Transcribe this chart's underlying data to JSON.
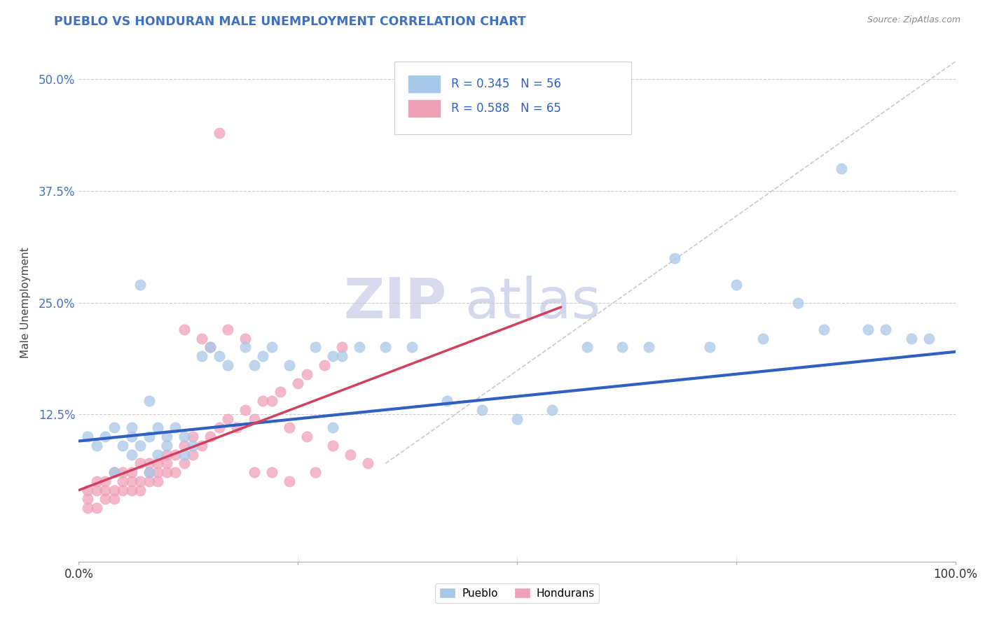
{
  "title": "PUEBLO VS HONDURAN MALE UNEMPLOYMENT CORRELATION CHART",
  "source": "Source: ZipAtlas.com",
  "ylabel": "Male Unemployment",
  "xlim": [
    0.0,
    1.0
  ],
  "ylim": [
    -0.04,
    0.54
  ],
  "xticks": [
    0.0,
    0.25,
    0.5,
    0.75,
    1.0
  ],
  "xtick_labels": [
    "0.0%",
    "",
    "",
    "",
    "100.0%"
  ],
  "yticks": [
    0.125,
    0.25,
    0.375,
    0.5
  ],
  "ytick_labels": [
    "12.5%",
    "25.0%",
    "37.5%",
    "50.0%"
  ],
  "pueblo_R": 0.345,
  "pueblo_N": 56,
  "honduran_R": 0.588,
  "honduran_N": 65,
  "pueblo_color": "#a8c8e8",
  "honduran_color": "#f0a0b8",
  "pueblo_line_color": "#3060c0",
  "honduran_line_color": "#d04060",
  "trend_line_color": "#c8c8d0",
  "legend_text_color": "#3060c0",
  "title_color": "#4070c0",
  "watermark_zip_color": "#d8d8ec",
  "watermark_atlas_color": "#c8c8e0",
  "pueblo_line_x0": 0.0,
  "pueblo_line_x1": 1.0,
  "pueblo_line_y0": 0.095,
  "pueblo_line_y1": 0.195,
  "honduran_line_x0": 0.0,
  "honduran_line_x1": 0.55,
  "honduran_line_y0": 0.04,
  "honduran_line_y1": 0.245,
  "gray_line_x0": 0.35,
  "gray_line_x1": 1.0,
  "gray_line_y0": 0.07,
  "gray_line_y1": 0.52,
  "pueblo_scatter_x": [
    0.01,
    0.02,
    0.03,
    0.04,
    0.05,
    0.06,
    0.06,
    0.07,
    0.08,
    0.09,
    0.1,
    0.1,
    0.11,
    0.12,
    0.13,
    0.07,
    0.08,
    0.14,
    0.15,
    0.16,
    0.17,
    0.19,
    0.2,
    0.21,
    0.22,
    0.24,
    0.27,
    0.29,
    0.3,
    0.32,
    0.35,
    0.38,
    0.42,
    0.46,
    0.5,
    0.54,
    0.58,
    0.62,
    0.65,
    0.68,
    0.72,
    0.75,
    0.78,
    0.82,
    0.85,
    0.87,
    0.9,
    0.92,
    0.95,
    0.97,
    0.29,
    0.06,
    0.09,
    0.12,
    0.04,
    0.08
  ],
  "pueblo_scatter_y": [
    0.1,
    0.09,
    0.1,
    0.11,
    0.09,
    0.1,
    0.08,
    0.09,
    0.1,
    0.11,
    0.09,
    0.1,
    0.11,
    0.1,
    0.09,
    0.27,
    0.14,
    0.19,
    0.2,
    0.19,
    0.18,
    0.2,
    0.18,
    0.19,
    0.2,
    0.18,
    0.2,
    0.19,
    0.19,
    0.2,
    0.2,
    0.2,
    0.14,
    0.13,
    0.12,
    0.13,
    0.2,
    0.2,
    0.2,
    0.3,
    0.2,
    0.27,
    0.21,
    0.25,
    0.22,
    0.4,
    0.22,
    0.22,
    0.21,
    0.21,
    0.11,
    0.11,
    0.08,
    0.08,
    0.06,
    0.06
  ],
  "honduran_scatter_x": [
    0.01,
    0.01,
    0.01,
    0.02,
    0.02,
    0.02,
    0.03,
    0.03,
    0.03,
    0.04,
    0.04,
    0.04,
    0.05,
    0.05,
    0.05,
    0.06,
    0.06,
    0.06,
    0.07,
    0.07,
    0.07,
    0.08,
    0.08,
    0.08,
    0.09,
    0.09,
    0.09,
    0.1,
    0.1,
    0.1,
    0.11,
    0.11,
    0.12,
    0.12,
    0.13,
    0.13,
    0.14,
    0.15,
    0.16,
    0.17,
    0.18,
    0.19,
    0.2,
    0.21,
    0.22,
    0.23,
    0.25,
    0.26,
    0.28,
    0.3,
    0.12,
    0.14,
    0.15,
    0.17,
    0.19,
    0.24,
    0.26,
    0.29,
    0.31,
    0.33,
    0.16,
    0.2,
    0.22,
    0.24,
    0.27
  ],
  "honduran_scatter_y": [
    0.02,
    0.03,
    0.04,
    0.02,
    0.04,
    0.05,
    0.03,
    0.04,
    0.05,
    0.03,
    0.04,
    0.06,
    0.04,
    0.05,
    0.06,
    0.04,
    0.05,
    0.06,
    0.04,
    0.05,
    0.07,
    0.05,
    0.06,
    0.07,
    0.05,
    0.06,
    0.07,
    0.06,
    0.07,
    0.08,
    0.06,
    0.08,
    0.07,
    0.09,
    0.08,
    0.1,
    0.09,
    0.1,
    0.11,
    0.12,
    0.11,
    0.13,
    0.12,
    0.14,
    0.14,
    0.15,
    0.16,
    0.17,
    0.18,
    0.2,
    0.22,
    0.21,
    0.2,
    0.22,
    0.21,
    0.11,
    0.1,
    0.09,
    0.08,
    0.07,
    0.44,
    0.06,
    0.06,
    0.05,
    0.06
  ]
}
